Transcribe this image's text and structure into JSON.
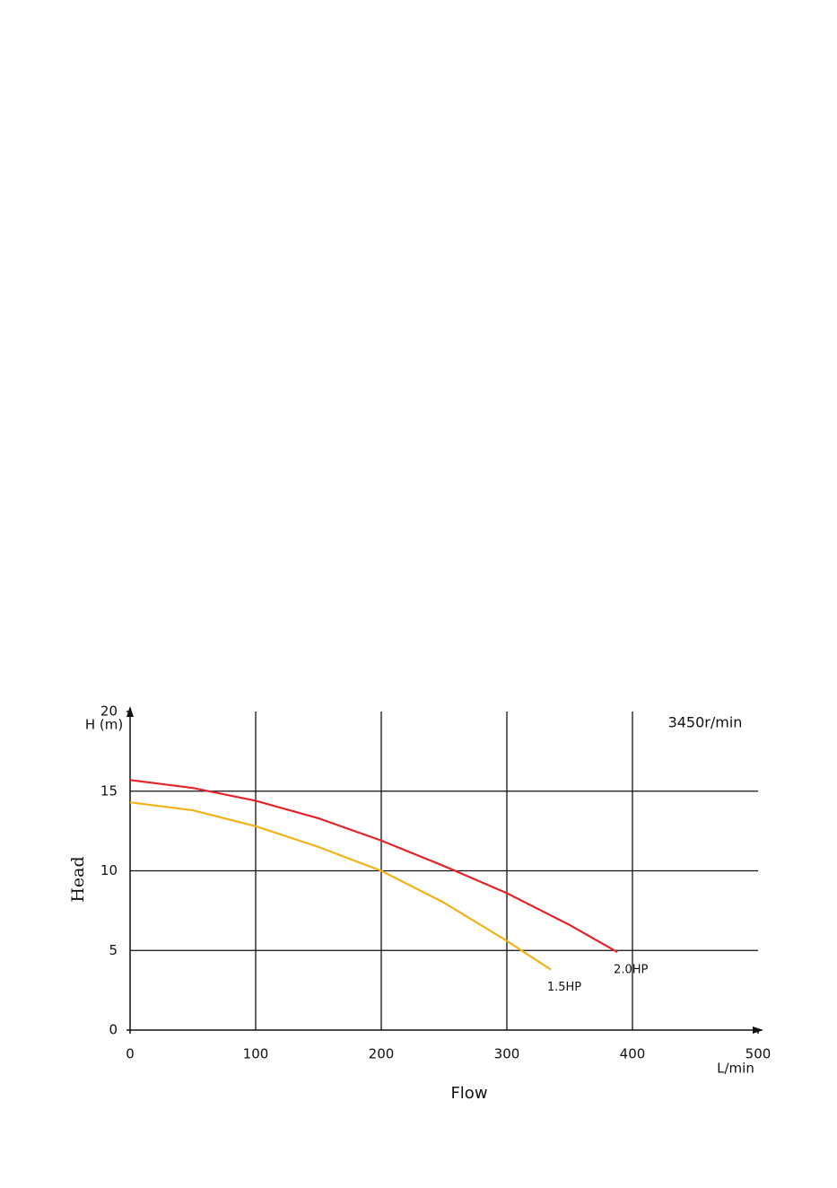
{
  "chart_data": {
    "type": "line",
    "y_label": "Head",
    "x_label": "Flow",
    "y_unit": "H (m)",
    "x_unit": "L/min",
    "annotation": "3450r/min",
    "xlim": [
      0,
      500
    ],
    "ylim": [
      0,
      20
    ],
    "xticks": [
      0,
      100,
      200,
      300,
      400,
      500
    ],
    "yticks": [
      0,
      5,
      10,
      15,
      20
    ],
    "grid": true,
    "series": [
      {
        "name": "2.0HP",
        "color": "#e3242b",
        "x": [
          0,
          50,
          100,
          150,
          200,
          250,
          300,
          350,
          388
        ],
        "values": [
          15.7,
          15.2,
          14.4,
          13.3,
          11.9,
          10.3,
          8.6,
          6.6,
          4.9
        ]
      },
      {
        "name": "1.5HP",
        "color": "#f2b218",
        "x": [
          0,
          50,
          100,
          150,
          200,
          250,
          300,
          335
        ],
        "values": [
          14.3,
          13.8,
          12.8,
          11.5,
          10.0,
          8.0,
          5.6,
          3.8
        ]
      }
    ]
  }
}
